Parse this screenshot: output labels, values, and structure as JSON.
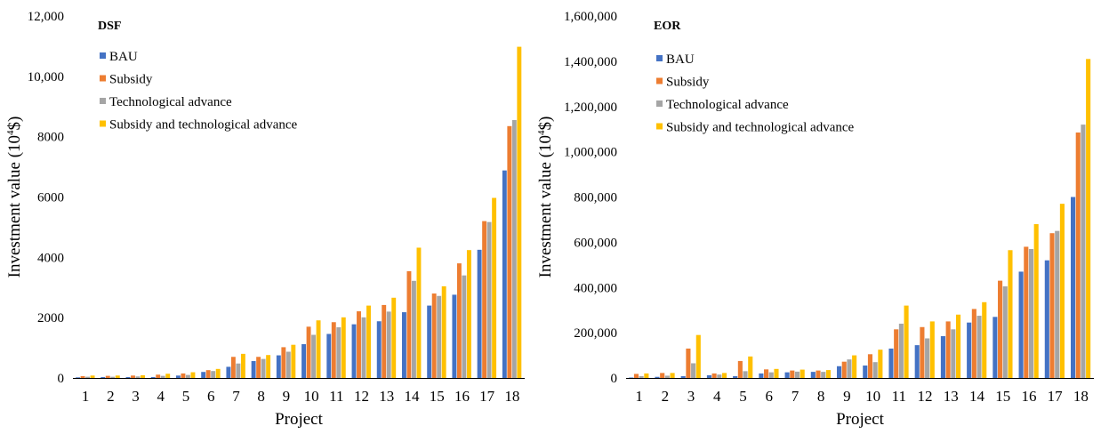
{
  "colors": {
    "BAU": "#4472C4",
    "Subsidy": "#ED7D31",
    "Technological advance": "#A5A5A5",
    "Subsidy and technological advance": "#FFC000"
  },
  "chart_data": [
    {
      "type": "bar",
      "title": "DSF",
      "xlabel": "Project",
      "ylabel": "Investment value (10⁴$)",
      "ylim": [
        0,
        12000
      ],
      "yticks": [
        0,
        2000,
        4000,
        6000,
        8000,
        10000,
        12000
      ],
      "ytick_labels": [
        "0",
        "2000",
        "4000",
        "6000",
        "8000",
        "10,000",
        "12,000"
      ],
      "categories": [
        "1",
        "2",
        "3",
        "4",
        "5",
        "6",
        "7",
        "8",
        "9",
        "10",
        "11",
        "12",
        "13",
        "14",
        "15",
        "16",
        "17",
        "18"
      ],
      "legend_position": "top-left",
      "series": [
        {
          "name": "BAU",
          "values": [
            20,
            30,
            30,
            30,
            80,
            200,
            370,
            560,
            750,
            1120,
            1460,
            1780,
            1880,
            2180,
            2400,
            2760,
            4250,
            6880
          ]
        },
        {
          "name": "Subsidy",
          "values": [
            60,
            70,
            80,
            110,
            150,
            260,
            700,
            700,
            1020,
            1700,
            1850,
            2210,
            2420,
            3540,
            2800,
            3800,
            5200,
            8350
          ]
        },
        {
          "name": "Technological advance",
          "values": [
            40,
            40,
            50,
            70,
            100,
            230,
            480,
            630,
            870,
            1430,
            1680,
            2010,
            2200,
            3220,
            2720,
            3400,
            5170,
            8550
          ]
        },
        {
          "name": "Subsidy and technological advance",
          "values": [
            80,
            80,
            90,
            140,
            190,
            300,
            800,
            760,
            1100,
            1910,
            2010,
            2400,
            2660,
            4320,
            3040,
            4240,
            5970,
            10980
          ]
        }
      ]
    },
    {
      "type": "bar",
      "title": "EOR",
      "xlabel": "Project",
      "ylabel": "Investment value (10⁴$)",
      "ylim": [
        0,
        1600000
      ],
      "yticks": [
        0,
        200000,
        400000,
        600000,
        800000,
        1000000,
        1200000,
        1400000,
        1600000
      ],
      "ytick_labels": [
        "0",
        "200,000",
        "400,000",
        "600,000",
        "800,000",
        "1,000,000",
        "1,200,000",
        "1,400,000",
        "1,600,000"
      ],
      "categories": [
        "1",
        "2",
        "3",
        "4",
        "5",
        "6",
        "7",
        "8",
        "9",
        "10",
        "11",
        "12",
        "13",
        "14",
        "15",
        "16",
        "17",
        "18"
      ],
      "legend_position": "top-left",
      "series": [
        {
          "name": "BAU",
          "values": [
            2000,
            5000,
            8000,
            12000,
            8000,
            20000,
            25000,
            27000,
            52000,
            55000,
            130000,
            145000,
            185000,
            245000,
            270000,
            470000,
            520000,
            800000
          ]
        },
        {
          "name": "Subsidy",
          "values": [
            18000,
            22000,
            130000,
            20000,
            75000,
            38000,
            33000,
            33000,
            72000,
            105000,
            215000,
            225000,
            250000,
            305000,
            430000,
            580000,
            640000,
            1085000
          ]
        },
        {
          "name": "Technological advance",
          "values": [
            8000,
            10000,
            65000,
            15000,
            30000,
            25000,
            28000,
            27000,
            82000,
            70000,
            240000,
            175000,
            215000,
            275000,
            405000,
            570000,
            650000,
            1120000
          ]
        },
        {
          "name": "Subsidy and technological advance",
          "values": [
            20000,
            22000,
            190000,
            22000,
            95000,
            40000,
            37000,
            35000,
            100000,
            125000,
            320000,
            250000,
            280000,
            335000,
            565000,
            680000,
            770000,
            1410000
          ]
        }
      ]
    }
  ]
}
